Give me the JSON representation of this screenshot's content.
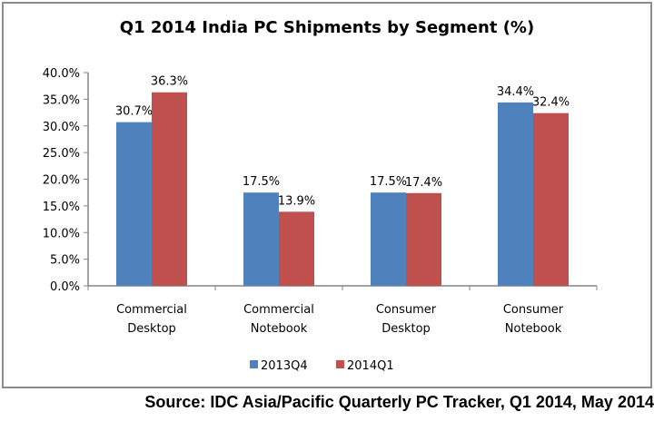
{
  "chart_data": {
    "type": "bar",
    "title": "Q1 2014 India PC Shipments by Segment (%)",
    "categories": [
      [
        "Commercial",
        "Desktop"
      ],
      [
        "Commercial",
        "Notebook"
      ],
      [
        "Consumer",
        "Desktop"
      ],
      [
        "Consumer",
        "Notebook"
      ]
    ],
    "series": [
      {
        "name": "2013Q4",
        "color": "#4f81bd",
        "values": [
          30.7,
          17.5,
          17.5,
          34.4
        ],
        "labels": [
          "30.7%",
          "17.5%",
          "17.5%",
          "34.4%"
        ]
      },
      {
        "name": "2014Q1",
        "color": "#c0504d",
        "values": [
          36.3,
          13.9,
          17.4,
          32.4
        ],
        "labels": [
          "36.3%",
          "13.9%",
          "17.4%",
          "32.4%"
        ]
      }
    ],
    "ylim": [
      0,
      40
    ],
    "yticks": [
      "0.0%",
      "5.0%",
      "10.0%",
      "15.0%",
      "20.0%",
      "25.0%",
      "30.0%",
      "35.0%",
      "40.0%"
    ],
    "grid": false,
    "legend": "bottom",
    "xlabel": "",
    "ylabel": ""
  },
  "source": "Source: IDC Asia/Pacific Quarterly PC Tracker, Q1 2014, May 2014"
}
